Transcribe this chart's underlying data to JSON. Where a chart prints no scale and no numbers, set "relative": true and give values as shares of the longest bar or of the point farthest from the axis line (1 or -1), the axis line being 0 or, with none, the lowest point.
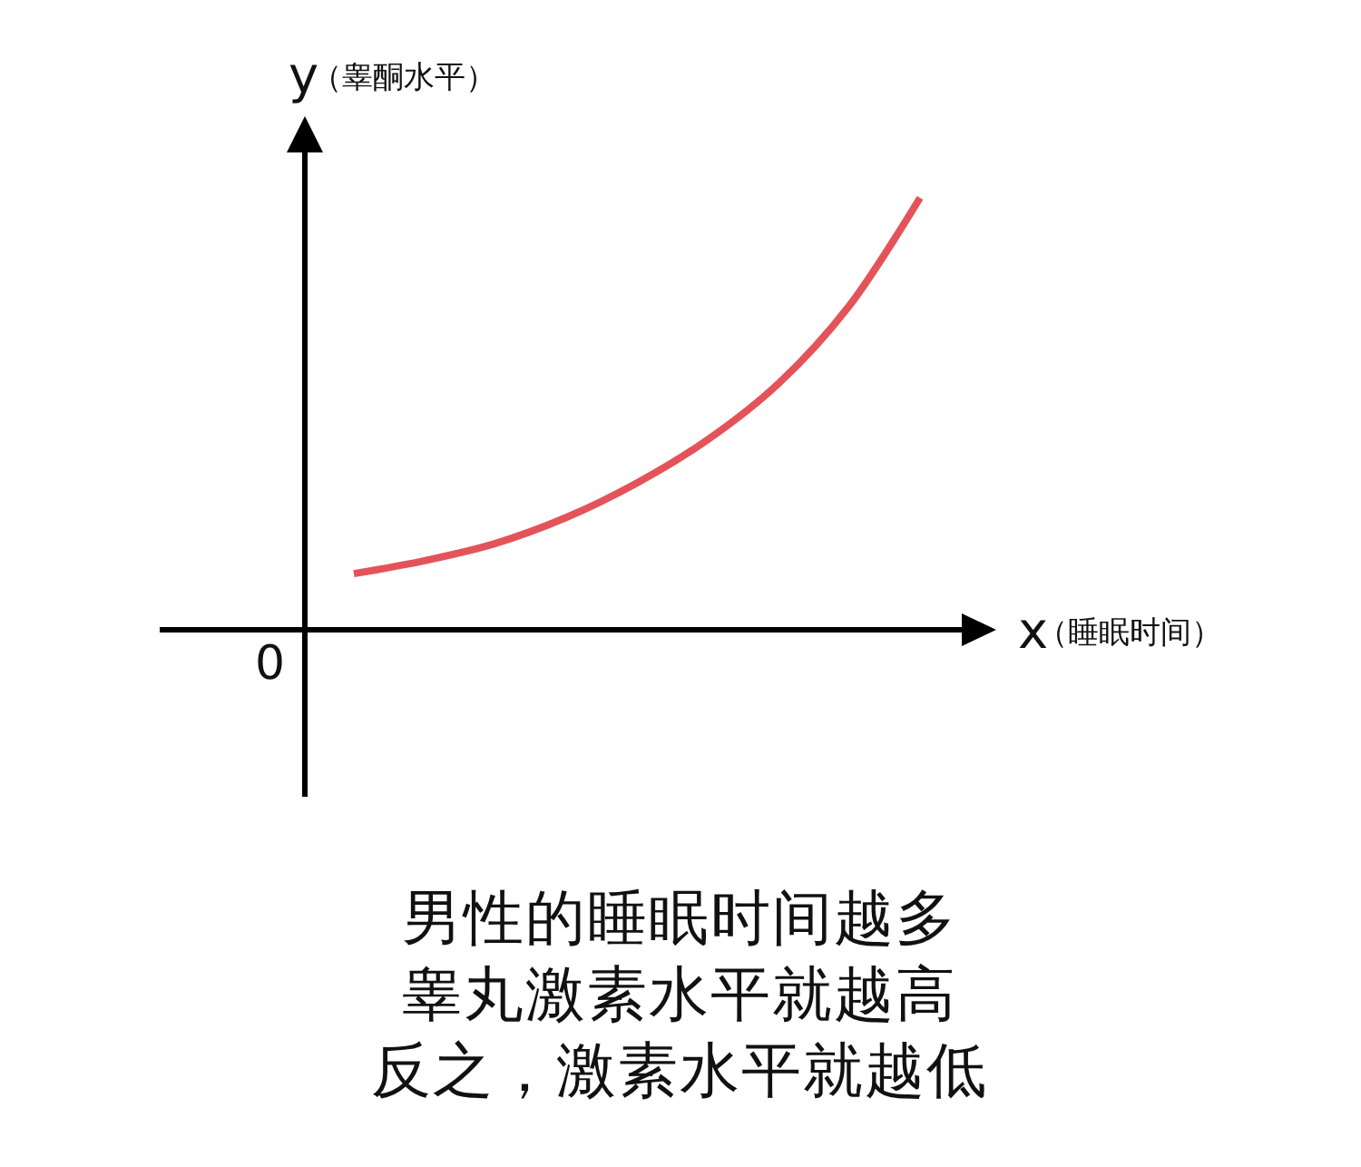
{
  "chart_data": {
    "type": "line",
    "relative": true,
    "categories": [
      null,
      null,
      null,
      null,
      null,
      null,
      null,
      null,
      null
    ],
    "series": [
      {
        "color": "#e5535a",
        "values": [
          0.13,
          0.16,
          0.2,
          0.26,
          0.34,
          0.44,
          0.57,
          0.75,
          1
        ]
      }
    ],
    "xlabel": "x（睡眠时间）",
    "ylabel": "y（睾酮水平）",
    "annotations": [
      "0",
      "男性的睡眠时间越多",
      "睾丸激素水平就越高",
      "反之，激素水平就越低"
    ]
  }
}
